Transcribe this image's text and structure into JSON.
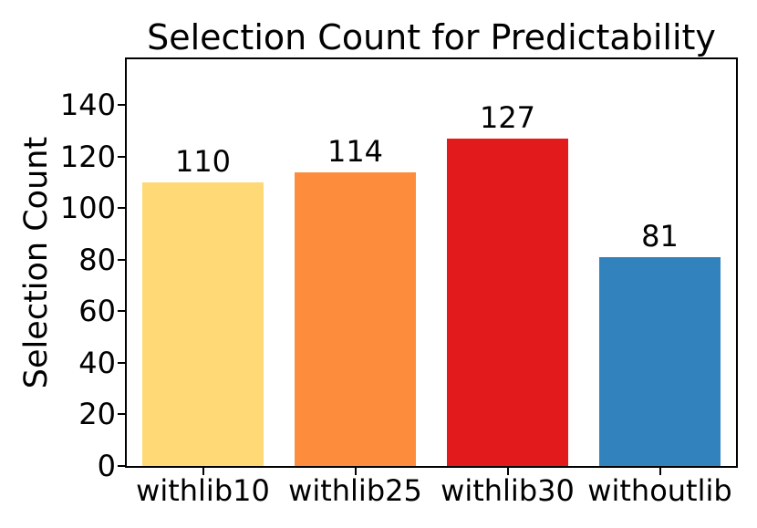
{
  "figure": {
    "background": "#ffffff",
    "text_color": "#000000",
    "frame_color": "#000000"
  },
  "chart_data": {
    "type": "bar",
    "title": "Selection Count for Predictability",
    "xlabel": "",
    "ylabel": "Selection Count",
    "categories": [
      "withlib10",
      "withlib25",
      "withlib30",
      "withoutlib"
    ],
    "values": [
      110,
      114,
      127,
      81
    ],
    "bar_colors": [
      "#FED976",
      "#FD8D3C",
      "#E31A1C",
      "#3182BD"
    ],
    "value_labels": [
      "110",
      "114",
      "127",
      "81"
    ],
    "yticks": [
      0,
      20,
      40,
      60,
      80,
      100,
      120,
      140
    ],
    "ylim": [
      0,
      157.7
    ],
    "bar_width_fraction": 0.8,
    "grid": false,
    "legend": null
  }
}
